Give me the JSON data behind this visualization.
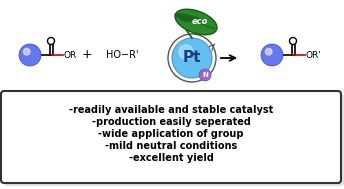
{
  "bg_color": "#ffffff",
  "box_text_lines": [
    "-readily available and stable catalyst",
    "-production easily seperated",
    "-wide application of group",
    "-mild neutral conditions",
    "-excellent yield"
  ],
  "box_color": "#ffffff",
  "box_edge_color": "#333333",
  "text_color": "#000000",
  "pt_circle_color": "#62c0f0",
  "pt_label": "Pt",
  "n_circle_color": "#9966cc",
  "n_label": "N",
  "sphere_color": "#5577ee",
  "co_bond_color": "#cc0000",
  "leaf_dark": "#1a5a1a",
  "leaf_mid": "#2a7a2a",
  "eco_text": "eco",
  "arrow_color": "#000000",
  "figsize": [
    3.44,
    1.89
  ],
  "dpi": 100
}
